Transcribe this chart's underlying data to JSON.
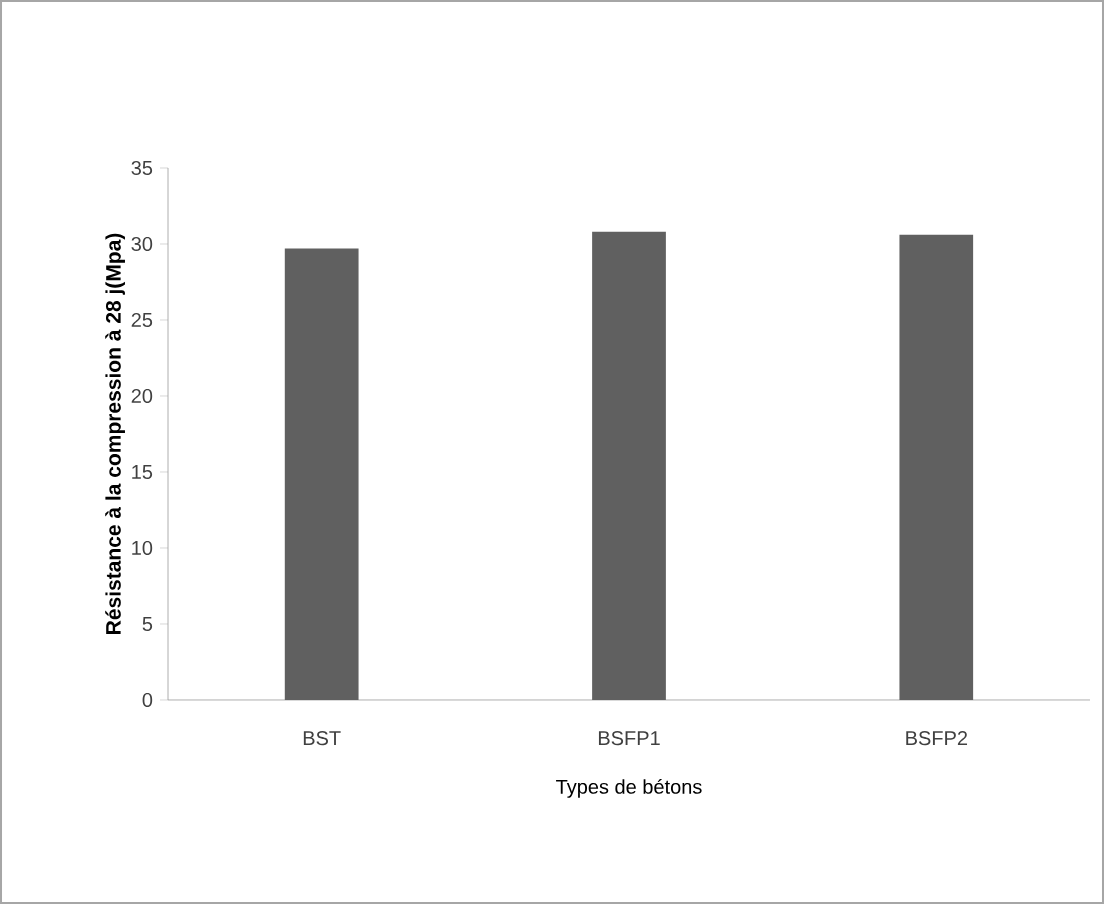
{
  "chart_data": {
    "type": "bar",
    "xlabel": "Types de bétons",
    "ylabel": "Résistance à la compression à 28 j(Mpa)",
    "categories": [
      "BST",
      "BSFP1",
      "BSFP2"
    ],
    "values": [
      29.7,
      30.8,
      30.6
    ],
    "color": "#606060",
    "ylim": [
      0,
      35
    ],
    "yticks": [
      0,
      5,
      10,
      15,
      20,
      25,
      30,
      35
    ],
    "grid": false
  }
}
